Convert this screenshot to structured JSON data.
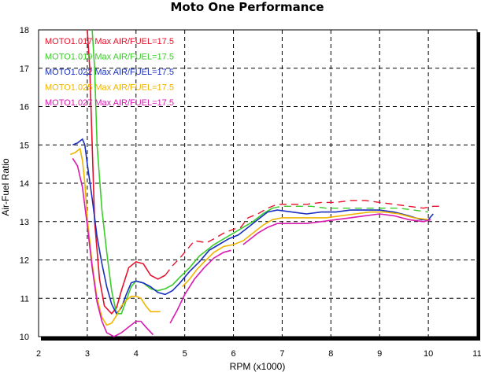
{
  "chart_data": {
    "type": "line",
    "title": "Moto One Performance",
    "xlabel": "RPM (x1000)",
    "ylabel": "Air-Fuel Ratio",
    "xlim": [
      2,
      11
    ],
    "ylim": [
      10,
      18
    ],
    "x_ticks": [
      "2",
      "3",
      "4",
      "5",
      "6",
      "7",
      "8",
      "9",
      "10",
      "11"
    ],
    "y_ticks": [
      "10",
      "11",
      "12",
      "13",
      "14",
      "15",
      "16",
      "17",
      "18"
    ],
    "grid": true,
    "legend_position": "top-left",
    "series": [
      {
        "name": "MOTO1.017",
        "legend": "MOTO1.017  Max AIR/FUEL=17.5",
        "color": "#e8102a",
        "dashed_from_x": 4.6,
        "points": [
          [
            3.0,
            18.0
          ],
          [
            3.05,
            17.0
          ],
          [
            3.1,
            15.0
          ],
          [
            3.15,
            13.0
          ],
          [
            3.25,
            11.5
          ],
          [
            3.35,
            10.8
          ],
          [
            3.5,
            10.6
          ],
          [
            3.6,
            10.75
          ],
          [
            3.7,
            11.2
          ],
          [
            3.85,
            11.8
          ],
          [
            4.0,
            11.95
          ],
          [
            4.15,
            11.9
          ],
          [
            4.3,
            11.6
          ],
          [
            4.45,
            11.5
          ],
          [
            4.6,
            11.6
          ],
          [
            4.75,
            11.85
          ],
          [
            4.9,
            12.05
          ],
          [
            5.0,
            12.2
          ],
          [
            5.2,
            12.5
          ],
          [
            5.45,
            12.45
          ],
          [
            5.6,
            12.55
          ],
          [
            5.8,
            12.7
          ],
          [
            6.0,
            12.8
          ],
          [
            6.15,
            12.85
          ],
          [
            6.3,
            13.1
          ],
          [
            6.5,
            13.2
          ],
          [
            6.7,
            13.35
          ],
          [
            6.9,
            13.45
          ],
          [
            7.2,
            13.45
          ],
          [
            7.5,
            13.45
          ],
          [
            7.8,
            13.5
          ],
          [
            8.1,
            13.5
          ],
          [
            8.4,
            13.55
          ],
          [
            8.7,
            13.55
          ],
          [
            9.0,
            13.5
          ],
          [
            9.3,
            13.45
          ],
          [
            9.6,
            13.4
          ],
          [
            9.9,
            13.35
          ],
          [
            10.1,
            13.4
          ],
          [
            10.25,
            13.4
          ]
        ]
      },
      {
        "name": "MOTO1.019",
        "legend": "MOTO1.019  Max AIR/FUEL=17.5",
        "color": "#3ccc2a",
        "dashed_from_x": 6.8,
        "points": [
          [
            3.1,
            18.0
          ],
          [
            3.15,
            17.0
          ],
          [
            3.2,
            15.0
          ],
          [
            3.3,
            13.3
          ],
          [
            3.4,
            12.2
          ],
          [
            3.5,
            11.2
          ],
          [
            3.6,
            10.6
          ],
          [
            3.7,
            10.6
          ],
          [
            3.8,
            10.95
          ],
          [
            3.9,
            11.3
          ],
          [
            4.0,
            11.45
          ],
          [
            4.15,
            11.4
          ],
          [
            4.3,
            11.25
          ],
          [
            4.45,
            11.2
          ],
          [
            4.6,
            11.25
          ],
          [
            4.75,
            11.35
          ],
          [
            4.9,
            11.55
          ],
          [
            5.1,
            11.8
          ],
          [
            5.3,
            12.1
          ],
          [
            5.6,
            12.4
          ],
          [
            5.8,
            12.55
          ],
          [
            6.0,
            12.7
          ],
          [
            6.2,
            12.85
          ],
          [
            6.4,
            13.0
          ],
          [
            6.6,
            13.2
          ],
          [
            6.8,
            13.35
          ],
          [
            7.0,
            13.4
          ],
          [
            7.3,
            13.4
          ],
          [
            7.6,
            13.4
          ],
          [
            7.9,
            13.35
          ],
          [
            8.2,
            13.35
          ],
          [
            8.5,
            13.35
          ],
          [
            8.8,
            13.35
          ],
          [
            9.1,
            13.35
          ],
          [
            9.4,
            13.35
          ],
          [
            9.7,
            13.3
          ],
          [
            10.0,
            13.25
          ]
        ]
      },
      {
        "name": "MOTO1.022",
        "legend": "MOTO1.022  Max AIR/FUEL=17.5",
        "color": "#1a2fc0",
        "dashed_from_x": null,
        "points": [
          [
            2.7,
            15.0
          ],
          [
            2.8,
            15.05
          ],
          [
            2.9,
            15.15
          ],
          [
            2.95,
            15.0
          ],
          [
            3.0,
            14.5
          ],
          [
            3.1,
            13.6
          ],
          [
            3.2,
            12.6
          ],
          [
            3.3,
            11.9
          ],
          [
            3.4,
            11.3
          ],
          [
            3.5,
            10.85
          ],
          [
            3.6,
            10.6
          ],
          [
            3.7,
            10.75
          ],
          [
            3.8,
            11.1
          ],
          [
            3.9,
            11.4
          ],
          [
            4.0,
            11.45
          ],
          [
            4.15,
            11.4
          ],
          [
            4.3,
            11.3
          ],
          [
            4.45,
            11.15
          ],
          [
            4.6,
            11.1
          ],
          [
            4.75,
            11.2
          ],
          [
            4.9,
            11.4
          ],
          [
            5.1,
            11.7
          ],
          [
            5.3,
            11.95
          ],
          [
            5.5,
            12.25
          ],
          [
            5.7,
            12.4
          ],
          [
            5.9,
            12.55
          ],
          [
            6.1,
            12.65
          ],
          [
            6.3,
            12.85
          ],
          [
            6.5,
            13.05
          ],
          [
            6.7,
            13.25
          ],
          [
            6.9,
            13.3
          ],
          [
            7.2,
            13.25
          ],
          [
            7.5,
            13.2
          ],
          [
            7.8,
            13.25
          ],
          [
            8.1,
            13.25
          ],
          [
            8.4,
            13.3
          ],
          [
            8.7,
            13.3
          ],
          [
            9.0,
            13.3
          ],
          [
            9.3,
            13.25
          ],
          [
            9.6,
            13.15
          ],
          [
            9.85,
            13.05
          ],
          [
            10.0,
            13.05
          ],
          [
            10.1,
            13.2
          ]
        ]
      },
      {
        "name": "MOTO1.025",
        "legend": "MOTO1.025  Max AIR/FUEL=17.5",
        "color": "#f0b400",
        "dashed_from_x": null,
        "segments": [
          [
            [
              2.65,
              14.75
            ],
            [
              2.75,
              14.8
            ],
            [
              2.85,
              14.9
            ],
            [
              2.9,
              14.6
            ],
            [
              2.95,
              14.0
            ],
            [
              3.0,
              13.1
            ],
            [
              3.1,
              11.9
            ],
            [
              3.2,
              11.0
            ],
            [
              3.3,
              10.5
            ],
            [
              3.4,
              10.3
            ],
            [
              3.5,
              10.35
            ],
            [
              3.6,
              10.55
            ],
            [
              3.7,
              10.8
            ],
            [
              3.8,
              10.95
            ],
            [
              3.9,
              11.05
            ],
            [
              4.0,
              11.05
            ],
            [
              4.1,
              11.0
            ],
            [
              4.2,
              10.8
            ],
            [
              4.3,
              10.65
            ],
            [
              4.5,
              10.65
            ]
          ],
          [
            [
              4.95,
              11.3
            ],
            [
              5.1,
              11.5
            ],
            [
              5.25,
              11.75
            ],
            [
              5.4,
              11.95
            ],
            [
              5.6,
              12.2
            ],
            [
              5.8,
              12.35
            ],
            [
              6.0,
              12.4
            ],
            [
              6.2,
              12.5
            ],
            [
              6.4,
              12.7
            ],
            [
              6.6,
              12.9
            ],
            [
              6.8,
              13.05
            ],
            [
              7.0,
              13.1
            ],
            [
              7.3,
              13.1
            ],
            [
              7.6,
              13.1
            ],
            [
              7.9,
              13.1
            ],
            [
              8.2,
              13.15
            ],
            [
              8.5,
              13.2
            ],
            [
              8.8,
              13.25
            ],
            [
              9.1,
              13.25
            ],
            [
              9.4,
              13.2
            ],
            [
              9.7,
              13.1
            ],
            [
              10.0,
              13.05
            ]
          ]
        ]
      },
      {
        "name": "MOTO1.027",
        "legend": "MOTO1.027  Max AIR/FUEL=17.5",
        "color": "#d81bb0",
        "dashed_from_x": null,
        "segments": [
          [
            [
              2.7,
              14.65
            ],
            [
              2.8,
              14.45
            ],
            [
              2.9,
              13.9
            ],
            [
              3.0,
              12.9
            ],
            [
              3.1,
              11.8
            ],
            [
              3.2,
              10.9
            ],
            [
              3.3,
              10.4
            ],
            [
              3.4,
              10.1
            ],
            [
              3.55,
              10.0
            ],
            [
              3.7,
              10.1
            ],
            [
              3.85,
              10.25
            ],
            [
              4.0,
              10.4
            ],
            [
              4.1,
              10.4
            ],
            [
              4.2,
              10.25
            ],
            [
              4.35,
              10.05
            ]
          ],
          [
            [
              4.7,
              10.35
            ],
            [
              4.85,
              10.7
            ],
            [
              5.0,
              11.1
            ],
            [
              5.2,
              11.5
            ],
            [
              5.4,
              11.8
            ],
            [
              5.6,
              12.05
            ],
            [
              5.8,
              12.2
            ],
            [
              5.95,
              12.25
            ]
          ],
          [
            [
              6.2,
              12.4
            ],
            [
              6.35,
              12.55
            ],
            [
              6.5,
              12.7
            ],
            [
              6.7,
              12.85
            ],
            [
              6.9,
              12.95
            ],
            [
              7.2,
              12.95
            ],
            [
              7.5,
              12.95
            ],
            [
              7.8,
              13.0
            ],
            [
              8.1,
              13.05
            ],
            [
              8.4,
              13.1
            ],
            [
              8.7,
              13.15
            ],
            [
              9.0,
              13.2
            ],
            [
              9.3,
              13.15
            ],
            [
              9.6,
              13.05
            ],
            [
              9.9,
              13.0
            ],
            [
              10.05,
              13.05
            ]
          ]
        ]
      }
    ]
  }
}
